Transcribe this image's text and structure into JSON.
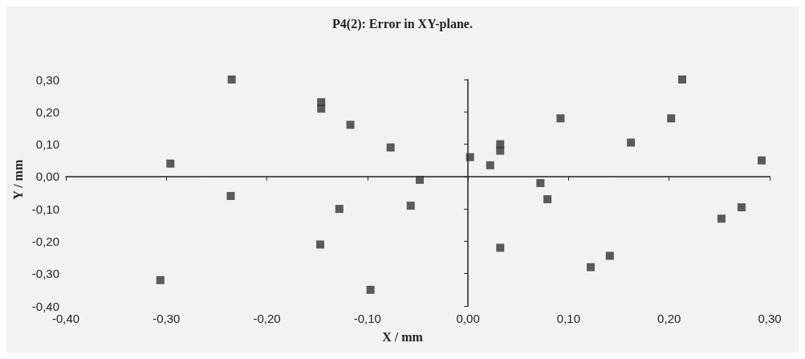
{
  "chart_data": {
    "type": "scatter",
    "title": "P4(2): Error in XY-plane.",
    "xlabel": "X / mm",
    "ylabel": "Y / mm",
    "marker": "square",
    "xlim": [
      -0.4,
      0.3
    ],
    "ylim": [
      -0.4,
      0.3
    ],
    "xticks": [
      {
        "value": -0.4,
        "label": "-0,40"
      },
      {
        "value": -0.3,
        "label": "-0,30"
      },
      {
        "value": -0.2,
        "label": "-0,20"
      },
      {
        "value": -0.1,
        "label": "-0,10"
      },
      {
        "value": 0,
        "label": "0,00"
      },
      {
        "value": 0.1,
        "label": "0,10"
      },
      {
        "value": 0.2,
        "label": "0,20"
      },
      {
        "value": 0.3,
        "label": "0,30"
      }
    ],
    "yticks": [
      {
        "value": -0.4,
        "label": "-0,40"
      },
      {
        "value": -0.3,
        "label": "-0,30"
      },
      {
        "value": -0.2,
        "label": "-0,20"
      },
      {
        "value": -0.1,
        "label": "-0,10"
      },
      {
        "value": 0,
        "label": "0,00"
      },
      {
        "value": 0.1,
        "label": "0,10"
      },
      {
        "value": 0.2,
        "label": "0,20"
      },
      {
        "value": 0.3,
        "label": "0,30"
      }
    ],
    "series": [
      {
        "color": "#333333",
        "x": [
          -0.235,
          -0.296,
          -0.236,
          -0.306,
          -0.146,
          -0.146,
          -0.117,
          -0.077,
          -0.048,
          -0.057,
          -0.128,
          -0.147,
          -0.097,
          0.002,
          0.022,
          0.032,
          0.032,
          0.072,
          0.079,
          0.032,
          0.092,
          0.162,
          0.202,
          0.213,
          0.292,
          0.272,
          0.252,
          0.141,
          0.122
        ],
        "values": [
          0.3,
          0.04,
          -0.06,
          -0.32,
          0.23,
          0.21,
          0.16,
          0.09,
          -0.01,
          -0.09,
          -0.1,
          -0.21,
          -0.35,
          0.06,
          0.035,
          0.1,
          0.08,
          -0.02,
          -0.07,
          -0.22,
          0.18,
          0.105,
          0.18,
          0.3,
          0.05,
          -0.095,
          -0.13,
          -0.245,
          -0.28
        ]
      }
    ]
  }
}
